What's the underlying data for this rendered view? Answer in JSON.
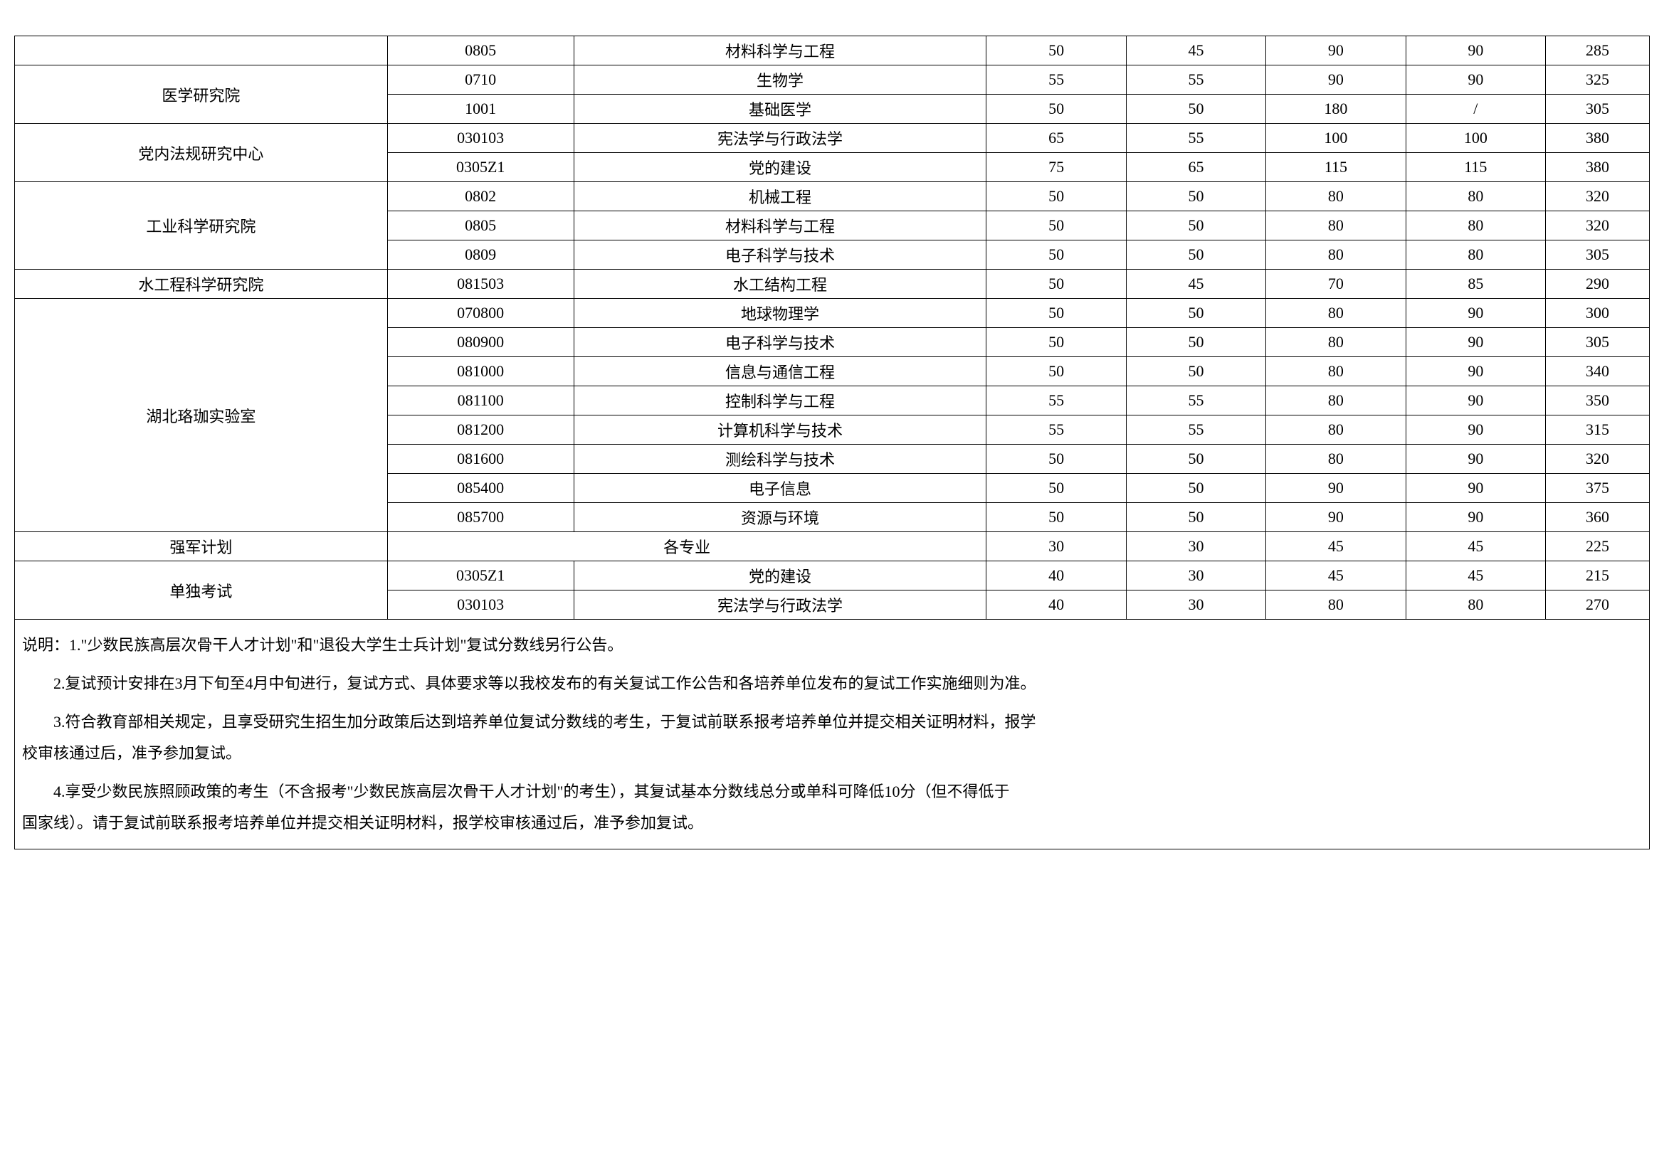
{
  "table": {
    "border_color": "#000000",
    "background_color": "#ffffff",
    "font_family": "SimSun",
    "cell_fontsize": 22,
    "rows": [
      {
        "dept": "",
        "code": "0805",
        "major": "材料科学与工程",
        "s1": "50",
        "s2": "45",
        "s3": "90",
        "s4": "90",
        "total": "285",
        "rowspan": 1
      },
      {
        "dept": "医学研究院",
        "code": "0710",
        "major": "生物学",
        "s1": "55",
        "s2": "55",
        "s3": "90",
        "s4": "90",
        "total": "325",
        "rowspan": 2
      },
      {
        "dept": null,
        "code": "1001",
        "major": "基础医学",
        "s1": "50",
        "s2": "50",
        "s3": "180",
        "s4": "/",
        "total": "305"
      },
      {
        "dept": "党内法规研究中心",
        "code": "030103",
        "major": "宪法学与行政法学",
        "s1": "65",
        "s2": "55",
        "s3": "100",
        "s4": "100",
        "total": "380",
        "rowspan": 2
      },
      {
        "dept": null,
        "code": "0305Z1",
        "major": "党的建设",
        "s1": "75",
        "s2": "65",
        "s3": "115",
        "s4": "115",
        "total": "380"
      },
      {
        "dept": "工业科学研究院",
        "code": "0802",
        "major": "机械工程",
        "s1": "50",
        "s2": "50",
        "s3": "80",
        "s4": "80",
        "total": "320",
        "rowspan": 3
      },
      {
        "dept": null,
        "code": "0805",
        "major": "材料科学与工程",
        "s1": "50",
        "s2": "50",
        "s3": "80",
        "s4": "80",
        "total": "320"
      },
      {
        "dept": null,
        "code": "0809",
        "major": "电子科学与技术",
        "s1": "50",
        "s2": "50",
        "s3": "80",
        "s4": "80",
        "total": "305"
      },
      {
        "dept": "水工程科学研究院",
        "code": "081503",
        "major": "水工结构工程",
        "s1": "50",
        "s2": "45",
        "s3": "70",
        "s4": "85",
        "total": "290",
        "rowspan": 1
      },
      {
        "dept": "湖北珞珈实验室",
        "code": "070800",
        "major": "地球物理学",
        "s1": "50",
        "s2": "50",
        "s3": "80",
        "s4": "90",
        "total": "300",
        "rowspan": 8
      },
      {
        "dept": null,
        "code": "080900",
        "major": "电子科学与技术",
        "s1": "50",
        "s2": "50",
        "s3": "80",
        "s4": "90",
        "total": "305"
      },
      {
        "dept": null,
        "code": "081000",
        "major": "信息与通信工程",
        "s1": "50",
        "s2": "50",
        "s3": "80",
        "s4": "90",
        "total": "340"
      },
      {
        "dept": null,
        "code": "081100",
        "major": "控制科学与工程",
        "s1": "55",
        "s2": "55",
        "s3": "80",
        "s4": "90",
        "total": "350"
      },
      {
        "dept": null,
        "code": "081200",
        "major": "计算机科学与技术",
        "s1": "55",
        "s2": "55",
        "s3": "80",
        "s4": "90",
        "total": "315"
      },
      {
        "dept": null,
        "code": "081600",
        "major": "测绘科学与技术",
        "s1": "50",
        "s2": "50",
        "s3": "80",
        "s4": "90",
        "total": "320"
      },
      {
        "dept": null,
        "code": "085400",
        "major": "电子信息",
        "s1": "50",
        "s2": "50",
        "s3": "90",
        "s4": "90",
        "total": "375"
      },
      {
        "dept": null,
        "code": "085700",
        "major": "资源与环境",
        "s1": "50",
        "s2": "50",
        "s3": "90",
        "s4": "90",
        "total": "360"
      },
      {
        "dept": "强军计划",
        "merged_major": "各专业",
        "s1": "30",
        "s2": "30",
        "s3": "45",
        "s4": "45",
        "total": "225",
        "rowspan": 1,
        "merge_code_major": true
      },
      {
        "dept": "单独考试",
        "code": "0305Z1",
        "major": "党的建设",
        "s1": "40",
        "s2": "30",
        "s3": "45",
        "s4": "45",
        "total": "215",
        "rowspan": 2
      },
      {
        "dept": null,
        "code": "030103",
        "major": "宪法学与行政法学",
        "s1": "40",
        "s2": "30",
        "s3": "80",
        "s4": "80",
        "total": "270"
      }
    ]
  },
  "notes": {
    "line1": "说明：1.\"少数民族高层次骨干人才计划\"和\"退役大学生士兵计划\"复试分数线另行公告。",
    "line2": "2.复试预计安排在3月下旬至4月中旬进行，复试方式、具体要求等以我校发布的有关复试工作公告和各培养单位发布的复试工作实施细则为准。",
    "line3a": "3.符合教育部相关规定，且享受研究生招生加分政策后达到培养单位复试分数线的考生，于复试前联系报考培养单位并提交相关证明材料，报学",
    "line3b": "校审核通过后，准予参加复试。",
    "line4a": "4.享受少数民族照顾政策的考生（不含报考\"少数民族高层次骨干人才计划\"的考生），其复试基本分数线总分或单科可降低10分（但不得低于",
    "line4b": "国家线）。请于复试前联系报考培养单位并提交相关证明材料，报学校审核通过后，准予参加复试。"
  }
}
